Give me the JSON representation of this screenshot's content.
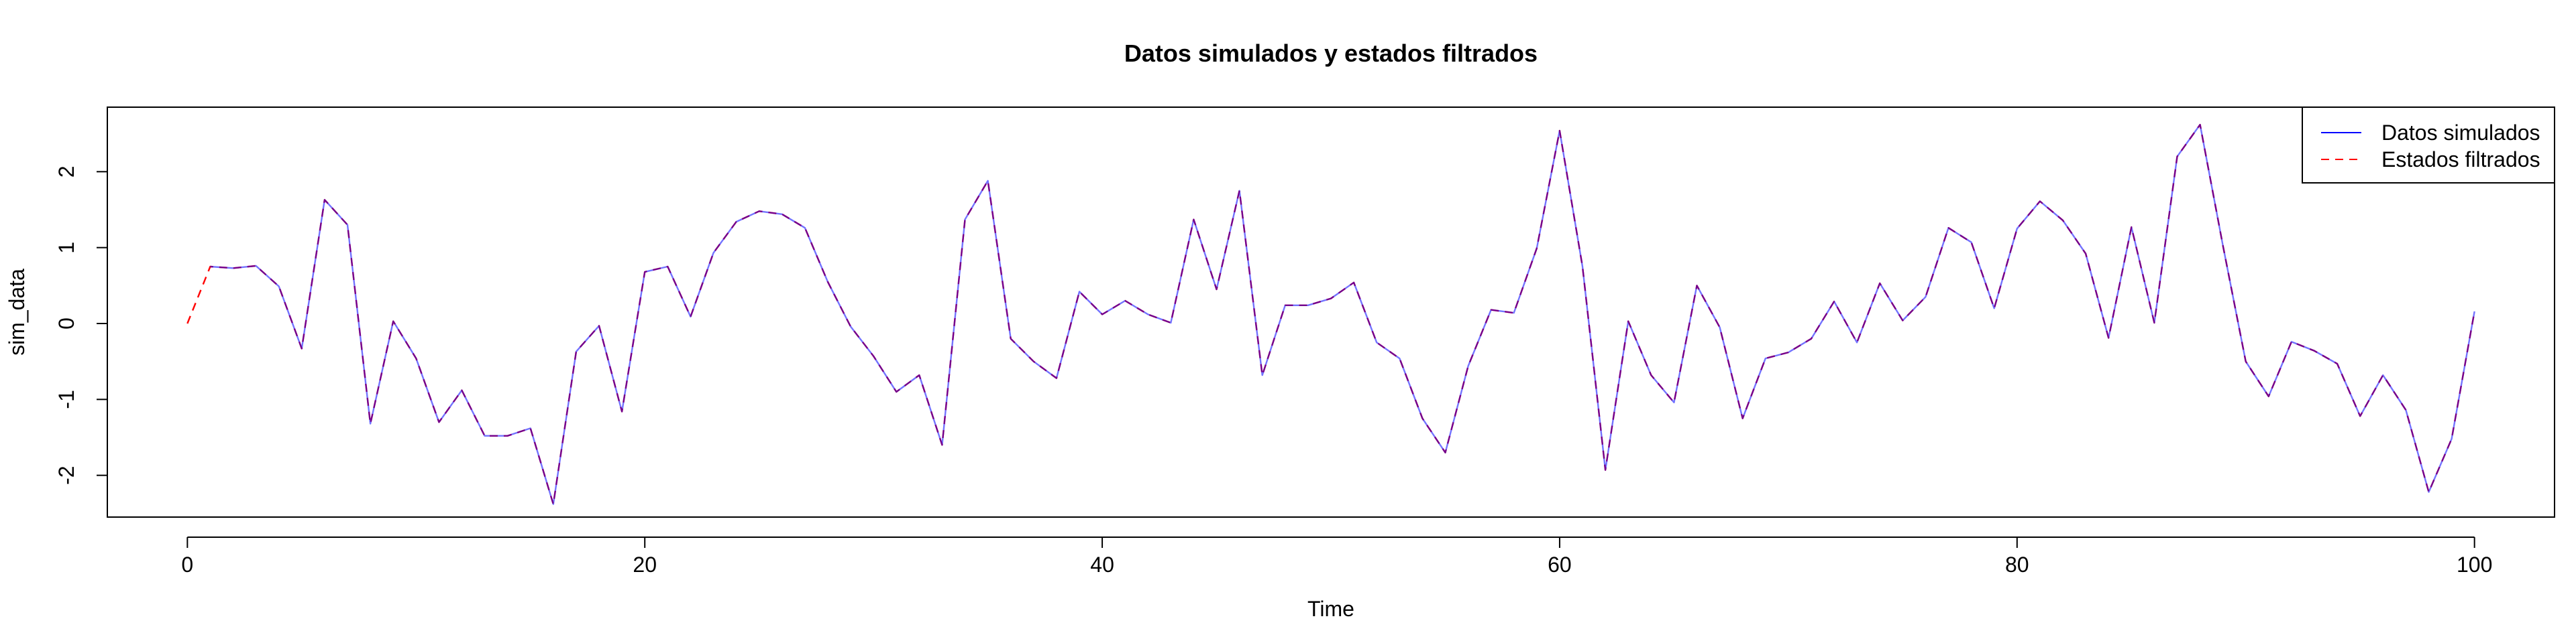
{
  "chart_data": {
    "type": "line",
    "title": "Datos simulados y estados filtrados",
    "xlabel": "Time",
    "ylabel": "sim_data",
    "xlim": [
      -3.5,
      103.5
    ],
    "ylim": [
      -2.55,
      2.85
    ],
    "x_ticks": [
      0,
      20,
      40,
      60,
      80,
      100
    ],
    "y_ticks": [
      -2,
      -1,
      0,
      1,
      2
    ],
    "grid": false,
    "legend_position": "top-right",
    "series": [
      {
        "name": "Datos simulados",
        "color": "#0000ff",
        "dash": "solid",
        "x_start": 1,
        "values": [
          0.75,
          0.73,
          0.76,
          0.49,
          -0.33,
          1.63,
          1.3,
          -1.32,
          0.03,
          -0.46,
          -1.3,
          -0.88,
          -1.48,
          -1.48,
          -1.38,
          -2.38,
          -0.37,
          -0.03,
          -1.16,
          0.68,
          0.75,
          0.09,
          0.93,
          1.34,
          1.48,
          1.44,
          1.26,
          0.55,
          -0.04,
          -0.43,
          -0.9,
          -0.68,
          -1.6,
          1.37,
          1.88,
          -0.2,
          -0.5,
          -0.72,
          0.42,
          0.12,
          0.3,
          0.12,
          0.01,
          1.37,
          0.45,
          1.75,
          -0.68,
          0.24,
          0.24,
          0.33,
          0.54,
          -0.25,
          -0.46,
          -1.25,
          -1.7,
          -0.56,
          0.18,
          0.14,
          0.99,
          2.54,
          0.75,
          -1.93,
          0.03,
          -0.68,
          -1.04,
          0.5,
          -0.05,
          -1.25,
          -0.46,
          -0.38,
          -0.2,
          0.29,
          -0.25,
          0.53,
          0.04,
          0.35,
          1.26,
          1.07,
          0.2,
          1.25,
          1.61,
          1.36,
          0.92,
          -0.19,
          1.27,
          0.01,
          2.2,
          2.62,
          1.03,
          -0.5,
          -0.96,
          -0.24,
          -0.36,
          -0.53,
          -1.22,
          -0.68,
          -1.14,
          -2.22,
          -1.52,
          0.16
        ]
      },
      {
        "name": "Estados filtrados",
        "color": "#ff0000",
        "dash": "dashed",
        "x_start": 0,
        "values": [
          0.0,
          0.75,
          0.73,
          0.76,
          0.49,
          -0.33,
          1.63,
          1.3,
          -1.32,
          0.03,
          -0.46,
          -1.3,
          -0.88,
          -1.48,
          -1.48,
          -1.38,
          -2.38,
          -0.37,
          -0.03,
          -1.16,
          0.68,
          0.75,
          0.09,
          0.93,
          1.34,
          1.48,
          1.44,
          1.26,
          0.55,
          -0.04,
          -0.43,
          -0.9,
          -0.68,
          -1.6,
          1.37,
          1.88,
          -0.2,
          -0.5,
          -0.72,
          0.42,
          0.12,
          0.3,
          0.12,
          0.01,
          1.37,
          0.45,
          1.75,
          -0.68,
          0.24,
          0.24,
          0.33,
          0.54,
          -0.25,
          -0.46,
          -1.25,
          -1.7,
          -0.56,
          0.18,
          0.14,
          0.99,
          2.54,
          0.75,
          -1.93,
          0.03,
          -0.68,
          -1.04,
          0.5,
          -0.05,
          -1.25,
          -0.46,
          -0.38,
          -0.2,
          0.29,
          -0.25,
          0.53,
          0.04,
          0.35,
          1.26,
          1.07,
          0.2,
          1.25,
          1.61,
          1.36,
          0.92,
          -0.19,
          1.27,
          0.01,
          2.2,
          2.62,
          1.03,
          -0.5,
          -0.96,
          -0.24,
          -0.36,
          -0.53,
          -1.22,
          -0.68,
          -1.14,
          -2.22,
          -1.52,
          0.16
        ]
      }
    ]
  }
}
